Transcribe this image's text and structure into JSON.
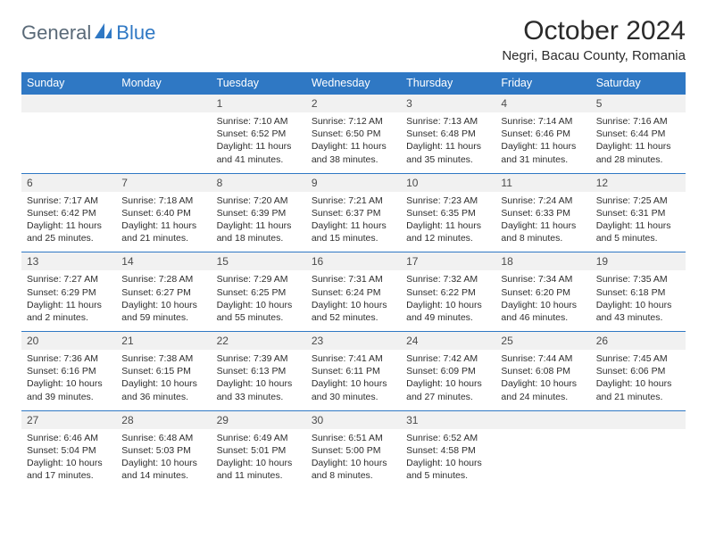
{
  "logo": {
    "text1": "General",
    "text2": "Blue"
  },
  "title": "October 2024",
  "location": "Negri, Bacau County, Romania",
  "colors": {
    "headerBg": "#2f78c4",
    "headerText": "#ffffff",
    "dateBg": "#f1f1f1",
    "borderTop": "#2f78c4",
    "bodyText": "#2e2e2e"
  },
  "dayNames": [
    "Sunday",
    "Monday",
    "Tuesday",
    "Wednesday",
    "Thursday",
    "Friday",
    "Saturday"
  ],
  "weeks": [
    [
      null,
      null,
      {
        "d": "1",
        "sr": "Sunrise: 7:10 AM",
        "ss": "Sunset: 6:52 PM",
        "dl": "Daylight: 11 hours and 41 minutes."
      },
      {
        "d": "2",
        "sr": "Sunrise: 7:12 AM",
        "ss": "Sunset: 6:50 PM",
        "dl": "Daylight: 11 hours and 38 minutes."
      },
      {
        "d": "3",
        "sr": "Sunrise: 7:13 AM",
        "ss": "Sunset: 6:48 PM",
        "dl": "Daylight: 11 hours and 35 minutes."
      },
      {
        "d": "4",
        "sr": "Sunrise: 7:14 AM",
        "ss": "Sunset: 6:46 PM",
        "dl": "Daylight: 11 hours and 31 minutes."
      },
      {
        "d": "5",
        "sr": "Sunrise: 7:16 AM",
        "ss": "Sunset: 6:44 PM",
        "dl": "Daylight: 11 hours and 28 minutes."
      }
    ],
    [
      {
        "d": "6",
        "sr": "Sunrise: 7:17 AM",
        "ss": "Sunset: 6:42 PM",
        "dl": "Daylight: 11 hours and 25 minutes."
      },
      {
        "d": "7",
        "sr": "Sunrise: 7:18 AM",
        "ss": "Sunset: 6:40 PM",
        "dl": "Daylight: 11 hours and 21 minutes."
      },
      {
        "d": "8",
        "sr": "Sunrise: 7:20 AM",
        "ss": "Sunset: 6:39 PM",
        "dl": "Daylight: 11 hours and 18 minutes."
      },
      {
        "d": "9",
        "sr": "Sunrise: 7:21 AM",
        "ss": "Sunset: 6:37 PM",
        "dl": "Daylight: 11 hours and 15 minutes."
      },
      {
        "d": "10",
        "sr": "Sunrise: 7:23 AM",
        "ss": "Sunset: 6:35 PM",
        "dl": "Daylight: 11 hours and 12 minutes."
      },
      {
        "d": "11",
        "sr": "Sunrise: 7:24 AM",
        "ss": "Sunset: 6:33 PM",
        "dl": "Daylight: 11 hours and 8 minutes."
      },
      {
        "d": "12",
        "sr": "Sunrise: 7:25 AM",
        "ss": "Sunset: 6:31 PM",
        "dl": "Daylight: 11 hours and 5 minutes."
      }
    ],
    [
      {
        "d": "13",
        "sr": "Sunrise: 7:27 AM",
        "ss": "Sunset: 6:29 PM",
        "dl": "Daylight: 11 hours and 2 minutes."
      },
      {
        "d": "14",
        "sr": "Sunrise: 7:28 AM",
        "ss": "Sunset: 6:27 PM",
        "dl": "Daylight: 10 hours and 59 minutes."
      },
      {
        "d": "15",
        "sr": "Sunrise: 7:29 AM",
        "ss": "Sunset: 6:25 PM",
        "dl": "Daylight: 10 hours and 55 minutes."
      },
      {
        "d": "16",
        "sr": "Sunrise: 7:31 AM",
        "ss": "Sunset: 6:24 PM",
        "dl": "Daylight: 10 hours and 52 minutes."
      },
      {
        "d": "17",
        "sr": "Sunrise: 7:32 AM",
        "ss": "Sunset: 6:22 PM",
        "dl": "Daylight: 10 hours and 49 minutes."
      },
      {
        "d": "18",
        "sr": "Sunrise: 7:34 AM",
        "ss": "Sunset: 6:20 PM",
        "dl": "Daylight: 10 hours and 46 minutes."
      },
      {
        "d": "19",
        "sr": "Sunrise: 7:35 AM",
        "ss": "Sunset: 6:18 PM",
        "dl": "Daylight: 10 hours and 43 minutes."
      }
    ],
    [
      {
        "d": "20",
        "sr": "Sunrise: 7:36 AM",
        "ss": "Sunset: 6:16 PM",
        "dl": "Daylight: 10 hours and 39 minutes."
      },
      {
        "d": "21",
        "sr": "Sunrise: 7:38 AM",
        "ss": "Sunset: 6:15 PM",
        "dl": "Daylight: 10 hours and 36 minutes."
      },
      {
        "d": "22",
        "sr": "Sunrise: 7:39 AM",
        "ss": "Sunset: 6:13 PM",
        "dl": "Daylight: 10 hours and 33 minutes."
      },
      {
        "d": "23",
        "sr": "Sunrise: 7:41 AM",
        "ss": "Sunset: 6:11 PM",
        "dl": "Daylight: 10 hours and 30 minutes."
      },
      {
        "d": "24",
        "sr": "Sunrise: 7:42 AM",
        "ss": "Sunset: 6:09 PM",
        "dl": "Daylight: 10 hours and 27 minutes."
      },
      {
        "d": "25",
        "sr": "Sunrise: 7:44 AM",
        "ss": "Sunset: 6:08 PM",
        "dl": "Daylight: 10 hours and 24 minutes."
      },
      {
        "d": "26",
        "sr": "Sunrise: 7:45 AM",
        "ss": "Sunset: 6:06 PM",
        "dl": "Daylight: 10 hours and 21 minutes."
      }
    ],
    [
      {
        "d": "27",
        "sr": "Sunrise: 6:46 AM",
        "ss": "Sunset: 5:04 PM",
        "dl": "Daylight: 10 hours and 17 minutes."
      },
      {
        "d": "28",
        "sr": "Sunrise: 6:48 AM",
        "ss": "Sunset: 5:03 PM",
        "dl": "Daylight: 10 hours and 14 minutes."
      },
      {
        "d": "29",
        "sr": "Sunrise: 6:49 AM",
        "ss": "Sunset: 5:01 PM",
        "dl": "Daylight: 10 hours and 11 minutes."
      },
      {
        "d": "30",
        "sr": "Sunrise: 6:51 AM",
        "ss": "Sunset: 5:00 PM",
        "dl": "Daylight: 10 hours and 8 minutes."
      },
      {
        "d": "31",
        "sr": "Sunrise: 6:52 AM",
        "ss": "Sunset: 4:58 PM",
        "dl": "Daylight: 10 hours and 5 minutes."
      },
      null,
      null
    ]
  ]
}
